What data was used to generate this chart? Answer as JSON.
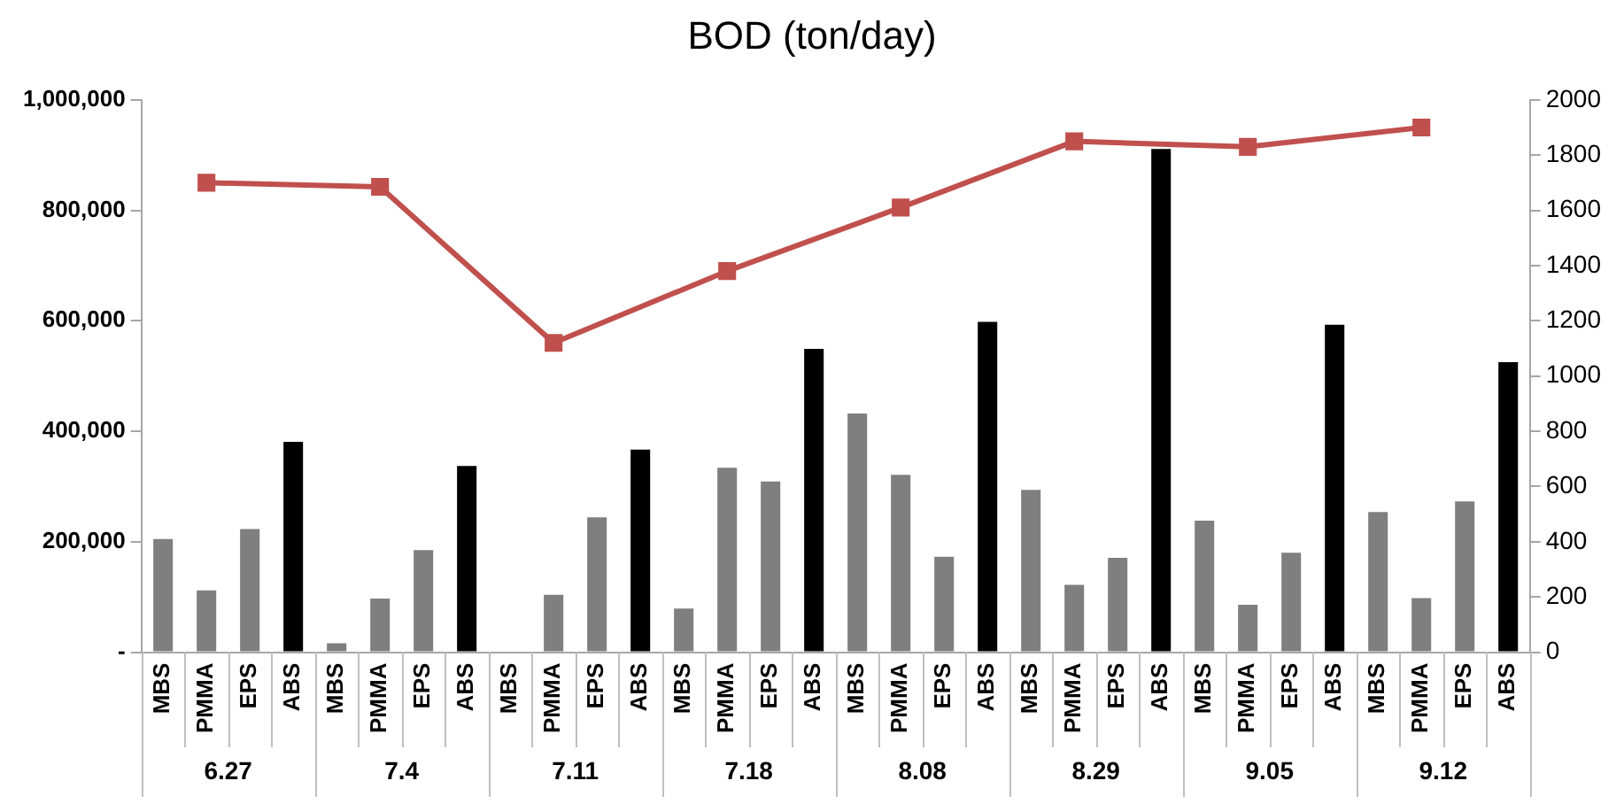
{
  "chart_data": {
    "type": "bar",
    "title": "BOD (ton/day)",
    "categories": [
      "MBS",
      "PMMA",
      "EPS",
      "ABS",
      "MBS",
      "PMMA",
      "EPS",
      "ABS",
      "MBS",
      "PMMA",
      "EPS",
      "ABS",
      "MBS",
      "PMMA",
      "EPS",
      "ABS",
      "MBS",
      "PMMA",
      "EPS",
      "ABS",
      "MBS",
      "PMMA",
      "EPS",
      "ABS",
      "MBS",
      "PMMA",
      "EPS",
      "ABS",
      "MBS",
      "PMMA",
      "EPS",
      "ABS"
    ],
    "annotations": [
      "6.27",
      "7.4",
      "7.11",
      "7.18",
      "8.08",
      "8.29",
      "9.05",
      "9.12"
    ],
    "series": [
      {
        "values": [
          205000,
          112000,
          223000,
          381000,
          16000,
          97000,
          185000,
          337000,
          0,
          104000,
          244000,
          367000,
          79000,
          334000,
          309000,
          549000,
          432000,
          321000,
          173000,
          598000,
          294000,
          122000,
          171000,
          911000,
          238000,
          86000,
          180000,
          593000,
          254000,
          98000,
          273000,
          525000
        ],
        "colors": [
          "#7f7f7f",
          "#7f7f7f",
          "#7f7f7f",
          "#000000",
          "#7f7f7f",
          "#7f7f7f",
          "#7f7f7f",
          "#000000",
          "#7f7f7f",
          "#7f7f7f",
          "#7f7f7f",
          "#000000",
          "#7f7f7f",
          "#7f7f7f",
          "#7f7f7f",
          "#000000",
          "#7f7f7f",
          "#7f7f7f",
          "#7f7f7f",
          "#000000",
          "#7f7f7f",
          "#7f7f7f",
          "#7f7f7f",
          "#000000",
          "#7f7f7f",
          "#7f7f7f",
          "#7f7f7f",
          "#000000",
          "#7f7f7f",
          "#7f7f7f",
          "#7f7f7f",
          "#000000"
        ]
      },
      {
        "type": "line",
        "axis": "y2",
        "color": "#c0504d",
        "marker": "square",
        "values": [
          null,
          1700,
          null,
          null,
          null,
          1685,
          null,
          null,
          null,
          1120,
          null,
          null,
          null,
          1380,
          null,
          null,
          null,
          1610,
          null,
          null,
          null,
          1850,
          null,
          null,
          null,
          1830,
          null,
          null,
          null,
          1900,
          null,
          null
        ]
      }
    ],
    "ylim": [
      0,
      1000000
    ],
    "yticks": [
      {
        "value": 0,
        "label": "-"
      },
      {
        "value": 200000,
        "label": "200,000"
      },
      {
        "value": 400000,
        "label": "400,000"
      },
      {
        "value": 600000,
        "label": "600,000"
      },
      {
        "value": 800000,
        "label": "800,000"
      },
      {
        "value": 1000000,
        "label": "1,000,000"
      }
    ],
    "y2lim": [
      0,
      2000
    ],
    "y2ticks": [
      0,
      200,
      400,
      600,
      800,
      1000,
      1200,
      1400,
      1600,
      1800,
      2000
    ],
    "grid": false,
    "legend": false
  }
}
